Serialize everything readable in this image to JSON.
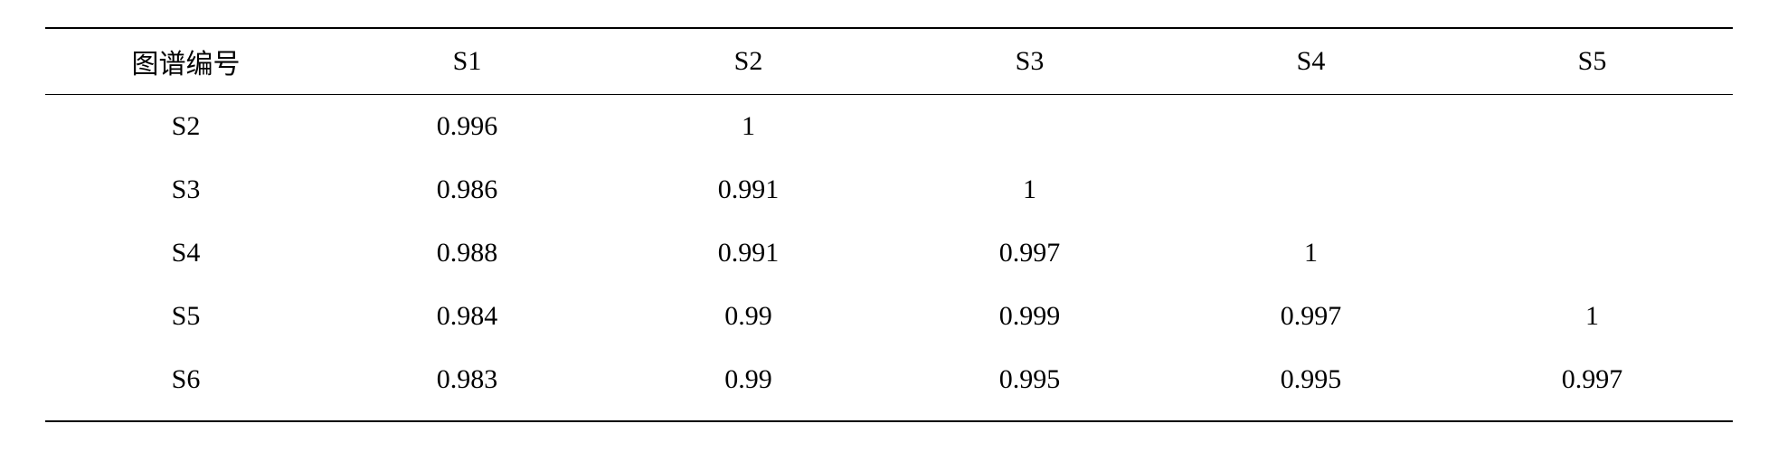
{
  "table": {
    "type": "table",
    "background_color": "#ffffff",
    "border_color": "#000000",
    "header_border_top_width": 2,
    "header_border_bottom_width": 1.5,
    "body_border_bottom_width": 2,
    "font_family": "Times New Roman / SimSun",
    "header_fontsize": 30,
    "cell_fontsize": 30,
    "text_color": "#000000",
    "text_align": "center",
    "columns": [
      "图谱编号",
      "S1",
      "S2",
      "S3",
      "S4",
      "S5"
    ],
    "column_widths_pct": [
      16.67,
      16.67,
      16.67,
      16.67,
      16.67,
      16.67
    ],
    "rows": [
      [
        "S2",
        "0.996",
        "1",
        "",
        "",
        ""
      ],
      [
        "S3",
        "0.986",
        "0.991",
        "1",
        "",
        ""
      ],
      [
        "S4",
        "0.988",
        "0.991",
        "0.997",
        "1",
        ""
      ],
      [
        "S5",
        "0.984",
        "0.99",
        "0.999",
        "0.997",
        "1"
      ],
      [
        "S6",
        "0.983",
        "0.99",
        "0.995",
        "0.995",
        "0.997"
      ]
    ]
  }
}
